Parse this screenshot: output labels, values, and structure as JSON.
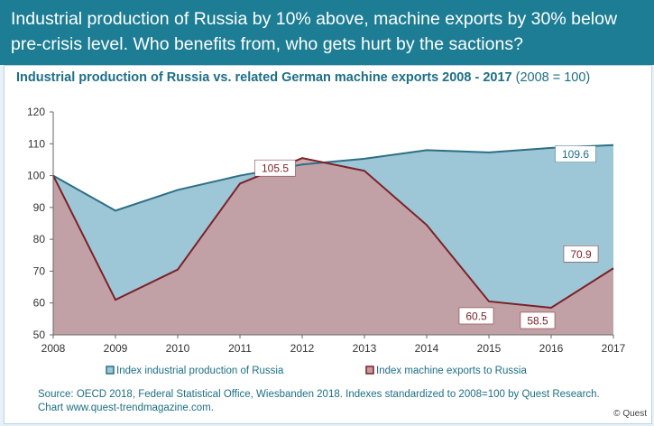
{
  "header": {
    "line1": "Industrial production of Russia by 10% above, machine exports by 30% below",
    "line2": "pre-crisis level. Who benefits from, who gets hurt by the sactions?"
  },
  "chart_data": {
    "type": "area",
    "title": "Industrial production of Russia vs. related German machine exports 2008 - 2017",
    "subtitle": "(2008 = 100)",
    "categories": [
      "2008",
      "2009",
      "2010",
      "2011",
      "2012",
      "2013",
      "2014",
      "2015",
      "2016",
      "2017"
    ],
    "ylim": [
      50,
      120
    ],
    "yticks": [
      50,
      60,
      70,
      80,
      90,
      100,
      110,
      120
    ],
    "grid": false,
    "legend_position": "bottom",
    "series": [
      {
        "name": "Index industrial production of Russia",
        "color": "#9dc6d6",
        "line_color": "#2d6f85",
        "values": [
          100,
          89,
          95.5,
          100,
          103.5,
          105.3,
          108,
          107.3,
          108.7,
          109.6
        ]
      },
      {
        "name": "Index machine exports to Russia",
        "color": "#c89a9e",
        "line_color": "#7a2228",
        "values": [
          100,
          61,
          70.5,
          97.5,
          105.5,
          101.5,
          84.5,
          60.5,
          58.5,
          70.9
        ]
      }
    ],
    "annotations": [
      {
        "series": 0,
        "index": 9,
        "text": "109.6"
      },
      {
        "series": 1,
        "index": 4,
        "text": "105.5"
      },
      {
        "series": 1,
        "index": 7,
        "text": "60.5"
      },
      {
        "series": 1,
        "index": 8,
        "text": "58.5"
      },
      {
        "series": 1,
        "index": 9,
        "text": "70.9"
      }
    ]
  },
  "footer": {
    "source_line1": "Source: OECD 2018, Federal Statistical Office, Wiesbanden 2018. Indexes standardized to 2008=100 by Quest Research.",
    "source_line2": "Chart www.quest-trendmagazine.com.",
    "copyright": "© Quest"
  }
}
